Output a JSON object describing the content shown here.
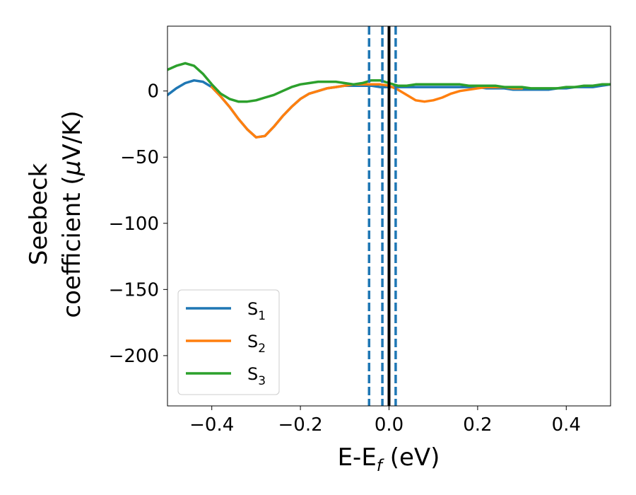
{
  "chart_data": {
    "type": "line",
    "title": "",
    "xlabel_main": "E-E",
    "xlabel_sub": "f",
    "xlabel_unit": " (eV)",
    "ylabel_line1": "Seebeck",
    "ylabel_line2_prefix": "coefficient  (",
    "ylabel_mu": "μ",
    "ylabel_line2_suffix": "V/K)",
    "xlim": [
      -0.5,
      0.5
    ],
    "ylim": [
      -238,
      49
    ],
    "xticks": [
      -0.4,
      -0.2,
      0.0,
      0.2,
      0.4
    ],
    "xtick_labels": [
      "−0.4",
      "−0.2",
      "0.0",
      "0.2",
      "0.4"
    ],
    "yticks": [
      0,
      -50,
      -100,
      -150,
      -200
    ],
    "ytick_labels": [
      "0",
      "−50",
      "−100",
      "−150",
      "−200"
    ],
    "grid": false,
    "legend_position": "lower-left",
    "series": [
      {
        "name_base": "S",
        "name_sub": "1",
        "color": "#1f77b4",
        "x": [
          -0.5,
          -0.48,
          -0.46,
          -0.44,
          -0.42,
          -0.4,
          -0.38,
          -0.36,
          -0.34,
          -0.32,
          -0.3,
          -0.28,
          -0.26,
          -0.24,
          -0.22,
          -0.2,
          -0.18,
          -0.16,
          -0.14,
          -0.12,
          -0.1,
          -0.08,
          -0.06,
          -0.04,
          -0.02,
          0.0,
          0.02,
          0.04,
          0.06,
          0.08,
          0.1,
          0.12,
          0.14,
          0.16,
          0.18,
          0.2,
          0.22,
          0.24,
          0.26,
          0.28,
          0.3,
          0.32,
          0.34,
          0.36,
          0.38,
          0.4,
          0.42,
          0.44,
          0.46,
          0.48,
          0.5
        ],
        "y": [
          -3,
          2,
          6,
          8,
          7,
          3,
          -4,
          -12,
          -21,
          -29,
          -35,
          -34,
          -27,
          -19,
          -12,
          -6,
          -2,
          0,
          2,
          3,
          4,
          4,
          4,
          4,
          3,
          3,
          3,
          3,
          3,
          3,
          3,
          3,
          3,
          3,
          3,
          3,
          2,
          2,
          2,
          1,
          1,
          1,
          1,
          1,
          2,
          2,
          3,
          3,
          3,
          4,
          5
        ]
      },
      {
        "name_base": "S",
        "name_sub": "2",
        "color": "#ff7f0e",
        "x": [
          -0.4,
          -0.38,
          -0.36,
          -0.34,
          -0.32,
          -0.3,
          -0.28,
          -0.26,
          -0.24,
          -0.22,
          -0.2,
          -0.18,
          -0.16,
          -0.14,
          -0.12,
          -0.1,
          -0.08,
          -0.06,
          -0.04,
          -0.02,
          0.0,
          0.02,
          0.04,
          0.06,
          0.08,
          0.1,
          0.12,
          0.14,
          0.16,
          0.18,
          0.2,
          0.22,
          0.24,
          0.26,
          0.28,
          0.3
        ],
        "y": [
          3,
          -4,
          -12,
          -21,
          -29,
          -35,
          -34,
          -27,
          -19,
          -12,
          -6,
          -2,
          0,
          2,
          3,
          4,
          5,
          5,
          5,
          5,
          4,
          1,
          -3,
          -7,
          -8,
          -7,
          -5,
          -2,
          0,
          1,
          2,
          3,
          3,
          3,
          2,
          2
        ]
      },
      {
        "name_base": "S",
        "name_sub": "3",
        "color": "#2ca02c",
        "x": [
          -0.5,
          -0.48,
          -0.46,
          -0.44,
          -0.42,
          -0.4,
          -0.38,
          -0.36,
          -0.34,
          -0.32,
          -0.3,
          -0.28,
          -0.26,
          -0.24,
          -0.22,
          -0.2,
          -0.18,
          -0.16,
          -0.14,
          -0.12,
          -0.1,
          -0.08,
          -0.06,
          -0.04,
          -0.02,
          0.0,
          0.02,
          0.04,
          0.06,
          0.08,
          0.1,
          0.12,
          0.14,
          0.16,
          0.18,
          0.2,
          0.22,
          0.24,
          0.26,
          0.28,
          0.3,
          0.32,
          0.34,
          0.36,
          0.38,
          0.4,
          0.42,
          0.44,
          0.46,
          0.48,
          0.5
        ],
        "y": [
          16,
          19,
          21,
          19,
          13,
          5,
          -2,
          -6,
          -8,
          -8,
          -7,
          -5,
          -3,
          0,
          3,
          5,
          6,
          7,
          7,
          7,
          6,
          5,
          6,
          8,
          8,
          6,
          4,
          4,
          5,
          5,
          5,
          5,
          5,
          5,
          4,
          4,
          4,
          4,
          3,
          3,
          3,
          2,
          2,
          2,
          2,
          3,
          3,
          4,
          4,
          5,
          5
        ]
      }
    ],
    "vertical_lines": [
      {
        "x": -0.045,
        "style": "dashed",
        "color": "#1f77b4"
      },
      {
        "x": -0.015,
        "style": "dashed",
        "color": "#1f77b4"
      },
      {
        "x": 0.015,
        "style": "dashed",
        "color": "#1f77b4"
      },
      {
        "x": 0.0,
        "style": "solid",
        "color": "#000000"
      }
    ]
  }
}
